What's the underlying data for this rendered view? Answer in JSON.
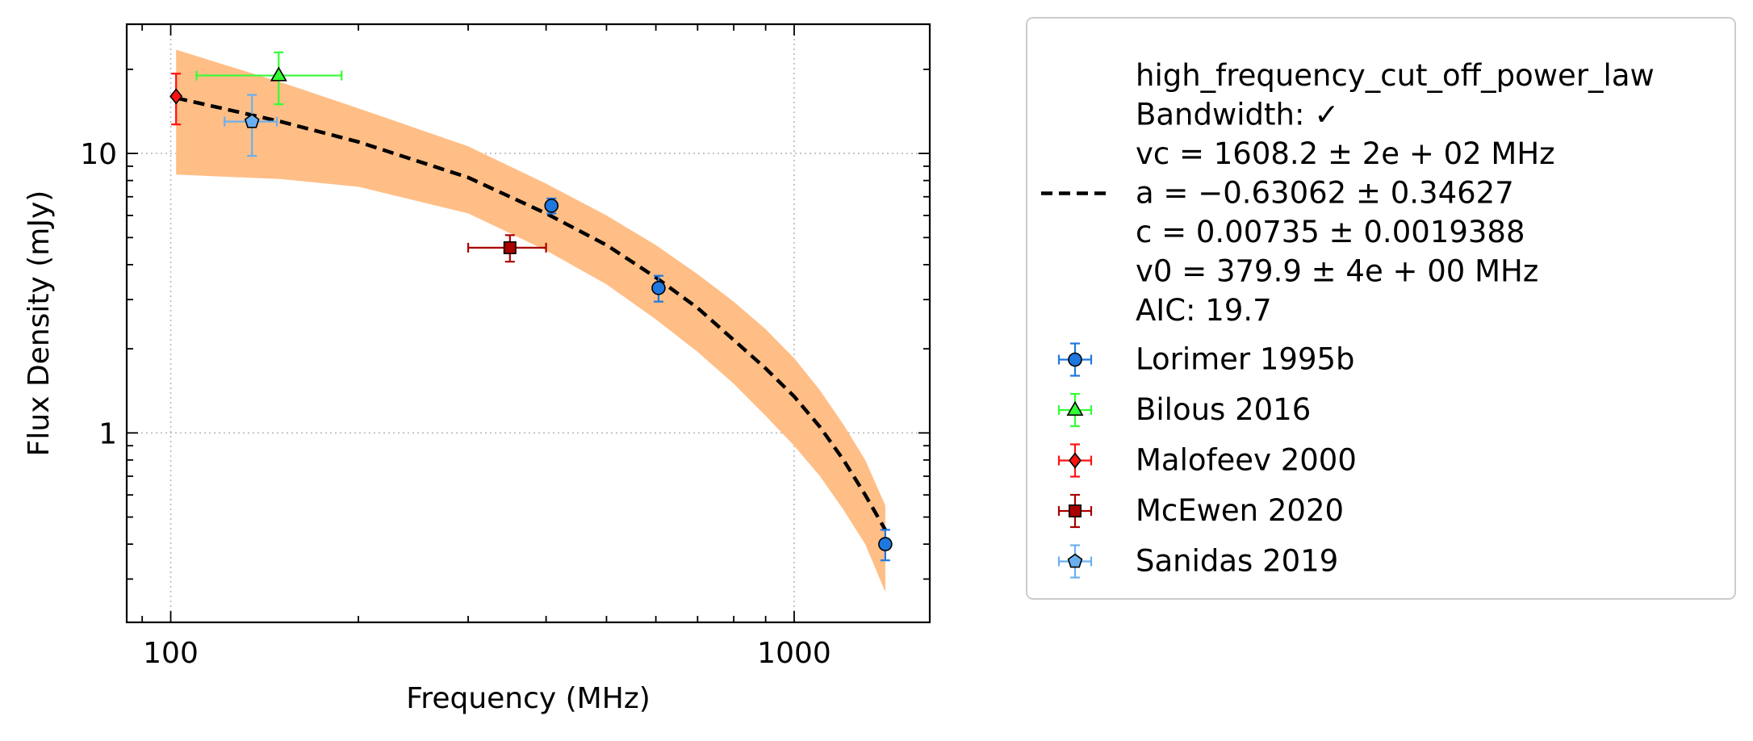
{
  "chart_data": {
    "type": "scatter",
    "xlabel": "Frequency (MHz)",
    "ylabel": "Flux Density (mJy)",
    "xscale": "log",
    "yscale": "log",
    "xlim": [
      85,
      1650
    ],
    "ylim": [
      0.21,
      29
    ],
    "x_ticks": [
      {
        "value": 100,
        "label": "100"
      },
      {
        "value": 1000,
        "label": "1000"
      }
    ],
    "y_ticks": [
      {
        "value": 1,
        "label": "1"
      },
      {
        "value": 10,
        "label": "10"
      }
    ],
    "grid": true,
    "legend_position": "outside-right",
    "fit": {
      "name": "high_frequency_cut_off_power_law",
      "legend_lines": [
        "high_frequency_cut_off_power_law",
        "Bandwidth: ✓",
        "vc = 1608.2 ± 2e + 02 MHz",
        "a = −0.63062 ± 0.34627",
        "c = 0.00735 ± 0.0019388",
        "v0 = 379.9 ± 4e + 00 MHz",
        "AIC: 19.7"
      ],
      "line_color": "#000000",
      "line_style": "dashed",
      "band_color": "#ffbe86",
      "curve": [
        {
          "x": 102,
          "y": 15.8
        },
        {
          "x": 150,
          "y": 13.0
        },
        {
          "x": 200,
          "y": 11.0
        },
        {
          "x": 300,
          "y": 8.2
        },
        {
          "x": 400,
          "y": 6.1
        },
        {
          "x": 500,
          "y": 4.7
        },
        {
          "x": 600,
          "y": 3.6
        },
        {
          "x": 700,
          "y": 2.8
        },
        {
          "x": 800,
          "y": 2.15
        },
        {
          "x": 900,
          "y": 1.7
        },
        {
          "x": 1000,
          "y": 1.35
        },
        {
          "x": 1100,
          "y": 1.05
        },
        {
          "x": 1200,
          "y": 0.8
        },
        {
          "x": 1300,
          "y": 0.6
        },
        {
          "x": 1400,
          "y": 0.45
        }
      ],
      "band_upper": [
        {
          "x": 102,
          "y": 23.5
        },
        {
          "x": 150,
          "y": 18.0
        },
        {
          "x": 200,
          "y": 14.5
        },
        {
          "x": 300,
          "y": 10.6
        },
        {
          "x": 400,
          "y": 7.8
        },
        {
          "x": 500,
          "y": 6.0
        },
        {
          "x": 600,
          "y": 4.7
        },
        {
          "x": 700,
          "y": 3.7
        },
        {
          "x": 800,
          "y": 2.95
        },
        {
          "x": 900,
          "y": 2.35
        },
        {
          "x": 1000,
          "y": 1.85
        },
        {
          "x": 1100,
          "y": 1.42
        },
        {
          "x": 1200,
          "y": 1.07
        },
        {
          "x": 1300,
          "y": 0.8
        },
        {
          "x": 1400,
          "y": 0.55
        }
      ],
      "band_lower": [
        {
          "x": 102,
          "y": 8.4
        },
        {
          "x": 150,
          "y": 8.1
        },
        {
          "x": 200,
          "y": 7.6
        },
        {
          "x": 300,
          "y": 6.1
        },
        {
          "x": 400,
          "y": 4.5
        },
        {
          "x": 500,
          "y": 3.4
        },
        {
          "x": 600,
          "y": 2.55
        },
        {
          "x": 700,
          "y": 1.95
        },
        {
          "x": 800,
          "y": 1.5
        },
        {
          "x": 900,
          "y": 1.15
        },
        {
          "x": 1000,
          "y": 0.9
        },
        {
          "x": 1100,
          "y": 0.7
        },
        {
          "x": 1200,
          "y": 0.53
        },
        {
          "x": 1300,
          "y": 0.4
        },
        {
          "x": 1400,
          "y": 0.27
        }
      ]
    },
    "series": [
      {
        "name": "Lorimer 1995b",
        "marker": "circle",
        "color": "#1f77e0",
        "points": [
          {
            "x": 408,
            "y": 6.5,
            "xerr": [
              0,
              0
            ],
            "yerr": [
              0.4,
              0.4
            ]
          },
          {
            "x": 606,
            "y": 3.3,
            "xerr": [
              0,
              0
            ],
            "yerr": [
              0.35,
              0.35
            ]
          },
          {
            "x": 1400,
            "y": 0.4,
            "xerr": [
              0,
              0
            ],
            "yerr": [
              0.05,
              0.05
            ]
          }
        ]
      },
      {
        "name": "Bilous 2016",
        "marker": "triangle",
        "color": "#33ff33",
        "points": [
          {
            "x": 149,
            "y": 19.0,
            "xerr": [
              39,
              39
            ],
            "yerr": [
              4.0,
              4.0
            ]
          }
        ]
      },
      {
        "name": "Malofeev 2000",
        "marker": "diamond",
        "color": "#ff1111",
        "points": [
          {
            "x": 102,
            "y": 16.0,
            "xerr": [
              0,
              0
            ],
            "yerr": [
              3.3,
              3.3
            ]
          }
        ]
      },
      {
        "name": "McEwen 2020",
        "marker": "square",
        "color": "#aa0000",
        "points": [
          {
            "x": 350,
            "y": 4.6,
            "xerr": [
              50,
              50
            ],
            "yerr": [
              0.5,
              0.5
            ]
          }
        ]
      },
      {
        "name": "Sanidas 2019",
        "marker": "pentagon",
        "color": "#6ab0f0",
        "points": [
          {
            "x": 135,
            "y": 13.0,
            "xerr": [
              13,
              13
            ],
            "yerr": [
              3.2,
              3.2
            ]
          }
        ]
      }
    ]
  }
}
